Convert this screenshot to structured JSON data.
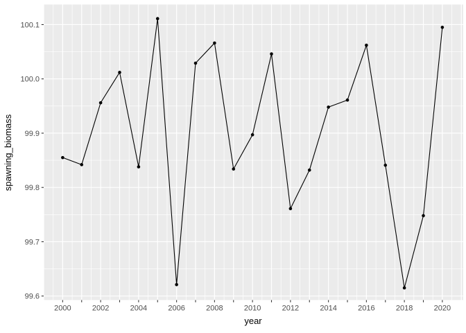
{
  "chart_data": {
    "type": "line",
    "title": "",
    "xlabel": "year",
    "ylabel": "spawning_biomass",
    "x": [
      2000,
      2001,
      2002,
      2003,
      2004,
      2005,
      2006,
      2007,
      2008,
      2009,
      2010,
      2011,
      2012,
      2013,
      2014,
      2015,
      2016,
      2017,
      2018,
      2019,
      2020
    ],
    "y": [
      99.855,
      99.842,
      99.956,
      100.012,
      99.838,
      100.111,
      99.621,
      100.029,
      100.066,
      99.834,
      99.897,
      100.046,
      99.761,
      99.832,
      99.948,
      99.961,
      100.062,
      99.841,
      99.615,
      99.748,
      100.095
    ],
    "xlim": [
      1999,
      2021.1
    ],
    "ylim": [
      99.5926,
      100.137
    ],
    "x_tick_years": [
      2000,
      2001,
      2002,
      2003,
      2004,
      2005,
      2006,
      2007,
      2008,
      2009,
      2010,
      2011,
      2012,
      2013,
      2014,
      2015,
      2016,
      2017,
      2018,
      2019,
      2020
    ],
    "x_labeled_ticks": [
      {
        "v": 2000,
        "t": "2000"
      },
      {
        "v": 2002,
        "t": "2002"
      },
      {
        "v": 2004,
        "t": "2004"
      },
      {
        "v": 2006,
        "t": "2006"
      },
      {
        "v": 2008,
        "t": "2008"
      },
      {
        "v": 2010,
        "t": "2010"
      },
      {
        "v": 2012,
        "t": "2012"
      },
      {
        "v": 2014,
        "t": "2014"
      },
      {
        "v": 2016,
        "t": "2016"
      },
      {
        "v": 2018,
        "t": "2018"
      },
      {
        "v": 2020,
        "t": "2020"
      }
    ],
    "y_labeled_ticks": [
      {
        "v": 99.6,
        "t": "99.6"
      },
      {
        "v": 99.7,
        "t": "99.7"
      },
      {
        "v": 99.8,
        "t": "99.8"
      },
      {
        "v": 99.9,
        "t": "99.9"
      },
      {
        "v": 100.0,
        "t": "100.0"
      },
      {
        "v": 100.1,
        "t": "100.1"
      }
    ],
    "grid": {
      "x_major_step": 1,
      "x_minor_step": 0.5,
      "y_major_step": 0.1,
      "y_minor_step": 0.05,
      "visible": true
    },
    "legend": "none",
    "colors": {
      "page_bg": "#FFFFFF",
      "panel_bg": "#EBEBEB",
      "grid": "#FFFFFF",
      "line": "#000000",
      "point": "#000000",
      "tick_text": "#4D4D4D",
      "axis_title": "#000000",
      "tick_mark": "#333333"
    }
  }
}
